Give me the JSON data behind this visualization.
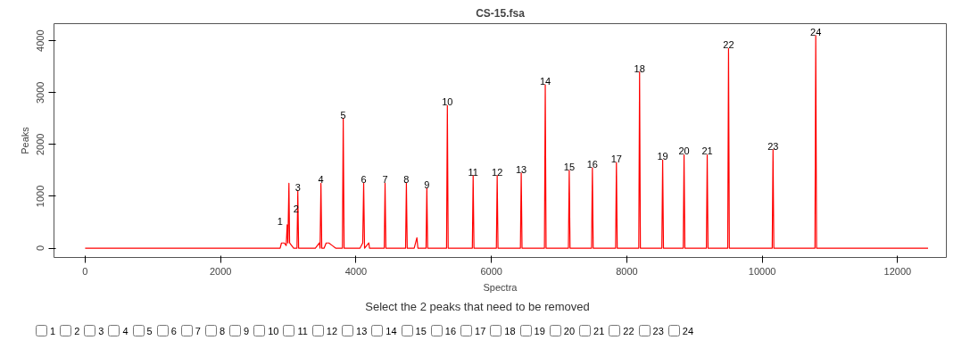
{
  "chart_data": {
    "type": "line",
    "title": "CS-15.fsa",
    "xlabel": "Spectra",
    "ylabel": "Peaks",
    "x": [
      0,
      2880,
      2900,
      2940,
      2970,
      2984,
      2995,
      3010,
      3020,
      3050,
      3080,
      3129,
      3141,
      3153,
      3400,
      3460,
      3470,
      3483,
      3495,
      3530,
      3560,
      3600,
      3650,
      3700,
      3800,
      3812,
      3825,
      4060,
      4100,
      4114,
      4127,
      4190,
      4200,
      4418,
      4430,
      4442,
      4733,
      4745,
      4757,
      4860,
      4900,
      4915,
      5035,
      5047,
      5059,
      5338,
      5350,
      5362,
      5719,
      5731,
      5743,
      6074,
      6086,
      6098,
      6429,
      6441,
      6453,
      6784,
      6796,
      6808,
      7138,
      7150,
      7162,
      7480,
      7492,
      7504,
      7835,
      7847,
      7859,
      8177,
      8189,
      8201,
      8518,
      8530,
      8542,
      8834,
      8846,
      8858,
      9176,
      9188,
      9200,
      9491,
      9503,
      9515,
      10148,
      10160,
      10172,
      10779,
      10791,
      10803,
      12450
    ],
    "series": [
      {
        "color": "#ff0000",
        "values": [
          0,
          0,
          100,
          100,
          50,
          450,
          100,
          1250,
          100,
          50,
          0,
          0,
          1100,
          0,
          0,
          100,
          0,
          1250,
          0,
          0,
          100,
          100,
          50,
          0,
          0,
          2500,
          0,
          0,
          100,
          1250,
          0,
          100,
          0,
          0,
          1250,
          0,
          0,
          1250,
          0,
          0,
          200,
          0,
          0,
          1150,
          0,
          0,
          2750,
          0,
          0,
          1400,
          0,
          0,
          1400,
          0,
          0,
          1450,
          0,
          0,
          3150,
          0,
          0,
          1500,
          0,
          0,
          1550,
          0,
          0,
          1650,
          0,
          0,
          3400,
          0,
          0,
          1700,
          0,
          0,
          1800,
          0,
          0,
          1800,
          0,
          0,
          3850,
          0,
          0,
          1900,
          0,
          0,
          4100,
          0,
          0
        ]
      }
    ],
    "xlim": [
      -460,
      12720
    ],
    "ylim": [
      -180,
      4330
    ],
    "xticks": [
      0,
      2000,
      4000,
      6000,
      8000,
      10000,
      12000
    ],
    "yticks": [
      0,
      1000,
      2000,
      3000,
      4000
    ],
    "grid": false,
    "marker": "none",
    "line_style": "solid",
    "annotations": [
      {
        "text": "1",
        "x": 2984,
        "y": 450
      },
      {
        "text": "2",
        "x": 3010,
        "y": 450
      },
      {
        "text": "3",
        "x": 3141,
        "y": 1100
      },
      {
        "text": "4",
        "x": 3483,
        "y": 1250
      },
      {
        "text": "5",
        "x": 3812,
        "y": 2500
      },
      {
        "text": "6",
        "x": 4114,
        "y": 1250
      },
      {
        "text": "7",
        "x": 4430,
        "y": 1250
      },
      {
        "text": "8",
        "x": 4745,
        "y": 1250
      },
      {
        "text": "9",
        "x": 5047,
        "y": 1150
      },
      {
        "text": "10",
        "x": 5350,
        "y": 2750
      },
      {
        "text": "11",
        "x": 5731,
        "y": 1400
      },
      {
        "text": "12",
        "x": 6086,
        "y": 1400
      },
      {
        "text": "13",
        "x": 6441,
        "y": 1450
      },
      {
        "text": "14",
        "x": 6796,
        "y": 3150
      },
      {
        "text": "15",
        "x": 7150,
        "y": 1500
      },
      {
        "text": "16",
        "x": 7492,
        "y": 1550
      },
      {
        "text": "17",
        "x": 7847,
        "y": 1650
      },
      {
        "text": "18",
        "x": 8189,
        "y": 3400
      },
      {
        "text": "19",
        "x": 8530,
        "y": 1700
      },
      {
        "text": "20",
        "x": 8846,
        "y": 1800
      },
      {
        "text": "21",
        "x": 9188,
        "y": 1800
      },
      {
        "text": "22",
        "x": 9503,
        "y": 3850
      },
      {
        "text": "23",
        "x": 10160,
        "y": 1900
      },
      {
        "text": "24",
        "x": 10791,
        "y": 4100
      },
      "Select the 2 peaks that need to be removed"
    ]
  }
}
